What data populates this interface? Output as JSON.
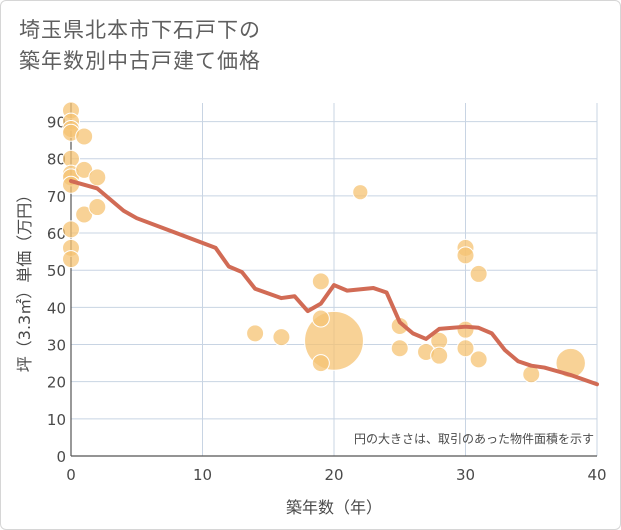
{
  "title": {
    "line1": "埼玉県北本市下石戸下の",
    "line2": "築年数別中古戸建て価格"
  },
  "chart_data": {
    "type": "scatter",
    "xlabel": "築年数（年）",
    "ylabel": "坪（3.3㎡）単価（万円）",
    "xlim": [
      0,
      40
    ],
    "ylim": [
      0,
      95
    ],
    "xticks": [
      0,
      10,
      20,
      30,
      40
    ],
    "yticks": [
      0,
      10,
      20,
      30,
      40,
      50,
      60,
      70,
      80,
      90
    ],
    "grid": true,
    "annotation": "円の大きさは、取引のあった物件面積を示す",
    "colors": {
      "bubble": "#f5c373",
      "line": "#d16b55",
      "grid": "#c8d4e3"
    },
    "bubbles": [
      {
        "x": 0,
        "y": 93,
        "size": 1
      },
      {
        "x": 0,
        "y": 90,
        "size": 1
      },
      {
        "x": 0,
        "y": 88,
        "size": 1
      },
      {
        "x": 0,
        "y": 87,
        "size": 1
      },
      {
        "x": 0,
        "y": 80,
        "size": 1
      },
      {
        "x": 0,
        "y": 76,
        "size": 1
      },
      {
        "x": 0,
        "y": 75,
        "size": 1
      },
      {
        "x": 0,
        "y": 73,
        "size": 1
      },
      {
        "x": 0,
        "y": 61,
        "size": 1
      },
      {
        "x": 0,
        "y": 56,
        "size": 1
      },
      {
        "x": 0,
        "y": 53,
        "size": 1
      },
      {
        "x": 1,
        "y": 86,
        "size": 1
      },
      {
        "x": 1,
        "y": 77,
        "size": 1
      },
      {
        "x": 1,
        "y": 65,
        "size": 1
      },
      {
        "x": 2,
        "y": 75,
        "size": 1
      },
      {
        "x": 2,
        "y": 67,
        "size": 1
      },
      {
        "x": 14,
        "y": 33,
        "size": 1
      },
      {
        "x": 16,
        "y": 32,
        "size": 1
      },
      {
        "x": 19,
        "y": 47,
        "size": 1
      },
      {
        "x": 19,
        "y": 37,
        "size": 1
      },
      {
        "x": 19,
        "y": 25,
        "size": 1
      },
      {
        "x": 20,
        "y": 31,
        "size": 12
      },
      {
        "x": 22,
        "y": 71,
        "size": 0.8
      },
      {
        "x": 25,
        "y": 35,
        "size": 1
      },
      {
        "x": 25,
        "y": 29,
        "size": 1
      },
      {
        "x": 27,
        "y": 28,
        "size": 1
      },
      {
        "x": 28,
        "y": 31,
        "size": 1
      },
      {
        "x": 28,
        "y": 27,
        "size": 1
      },
      {
        "x": 30,
        "y": 56,
        "size": 1
      },
      {
        "x": 30,
        "y": 54,
        "size": 1
      },
      {
        "x": 30,
        "y": 34,
        "size": 1
      },
      {
        "x": 30,
        "y": 29,
        "size": 1
      },
      {
        "x": 31,
        "y": 49,
        "size": 1
      },
      {
        "x": 31,
        "y": 26,
        "size": 1
      },
      {
        "x": 35,
        "y": 22,
        "size": 1
      },
      {
        "x": 38,
        "y": 25,
        "size": 3
      }
    ],
    "trend": {
      "x": [
        0,
        2,
        4,
        5,
        8,
        11,
        12,
        13,
        14,
        16,
        17,
        18,
        19,
        20,
        21,
        23,
        24,
        25,
        26,
        27,
        28,
        30,
        31,
        32,
        33,
        34,
        35,
        36,
        38,
        40
      ],
      "y": [
        74,
        72,
        66,
        64,
        60,
        56,
        51,
        49.5,
        45,
        42.5,
        43,
        39,
        41,
        46,
        44.5,
        45.2,
        44,
        36,
        33,
        31.5,
        34.2,
        34.8,
        34.5,
        33,
        28.5,
        25.5,
        24.3,
        23.8,
        21.8,
        19.3
      ]
    }
  }
}
